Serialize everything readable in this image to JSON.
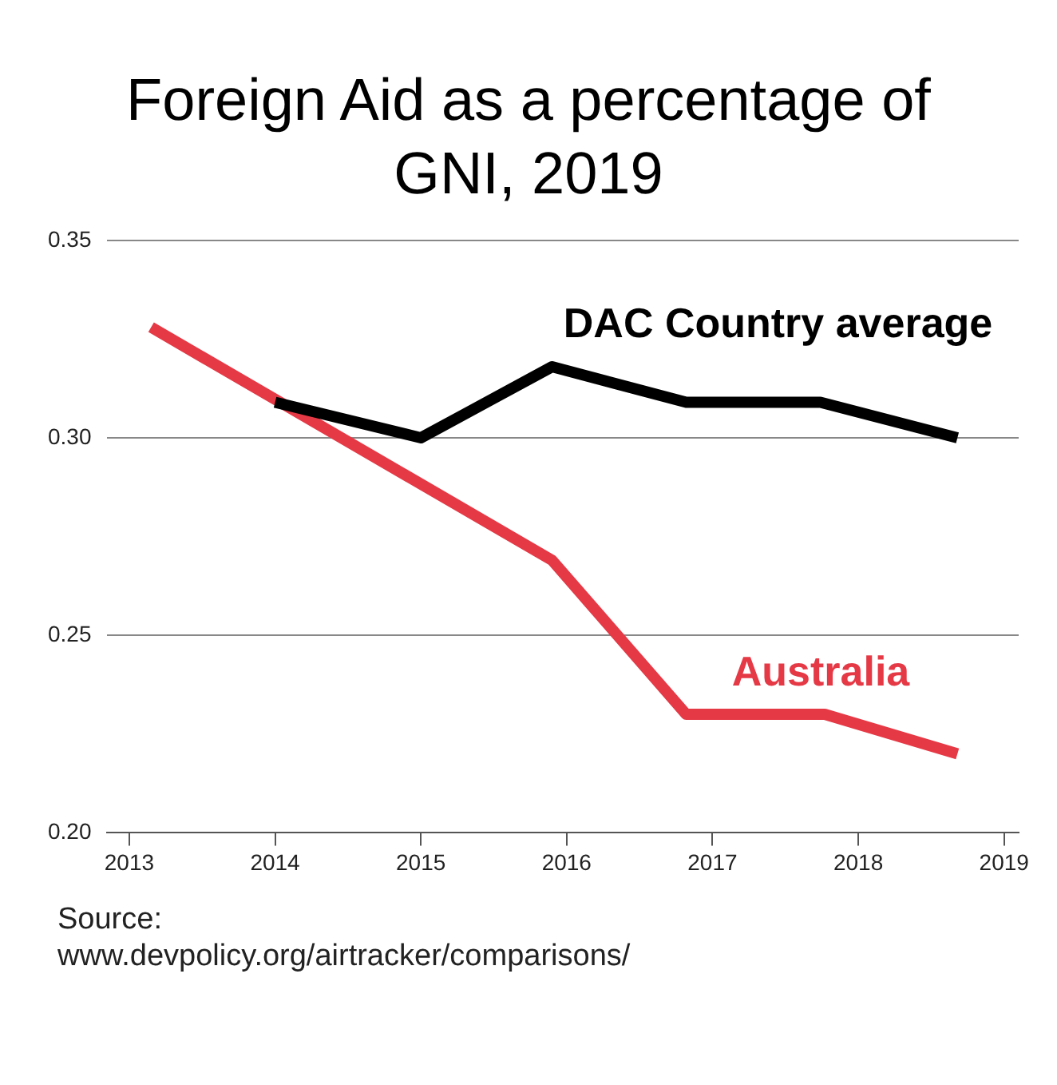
{
  "chart_data": {
    "type": "line",
    "title": "Foreign Aid as a percentage of GNI, 2019",
    "series": [
      {
        "name": "DAC Country average",
        "color": "#000000",
        "x": [
          2014,
          2015,
          2015.9,
          2016.82,
          2017.74,
          2018.68
        ],
        "values": [
          0.309,
          0.3,
          0.318,
          0.309,
          0.309,
          0.3
        ]
      },
      {
        "name": "Australia",
        "color": "#e63946",
        "x": [
          2013.15,
          2015.9,
          2016.82,
          2017.77,
          2018.68
        ],
        "values": [
          0.328,
          0.269,
          0.23,
          0.23,
          0.22
        ]
      }
    ],
    "xlim": [
      2012.85,
      2019.1
    ],
    "xticks": [
      2013,
      2014,
      2015,
      2016,
      2017,
      2018,
      2019
    ],
    "ylim": [
      0.2,
      0.35
    ],
    "yticks": [
      {
        "value": 0.2,
        "label": "0.20"
      },
      {
        "value": 0.25,
        "label": "0.25"
      },
      {
        "value": 0.3,
        "label": "0.30"
      },
      {
        "value": 0.35,
        "label": "0.35"
      }
    ],
    "grid": "y",
    "legend": false,
    "marker": "none",
    "line_style": "solid",
    "annotations": [
      "Source:",
      "www.devpolicy.org/airtracker/comparisons/"
    ]
  }
}
